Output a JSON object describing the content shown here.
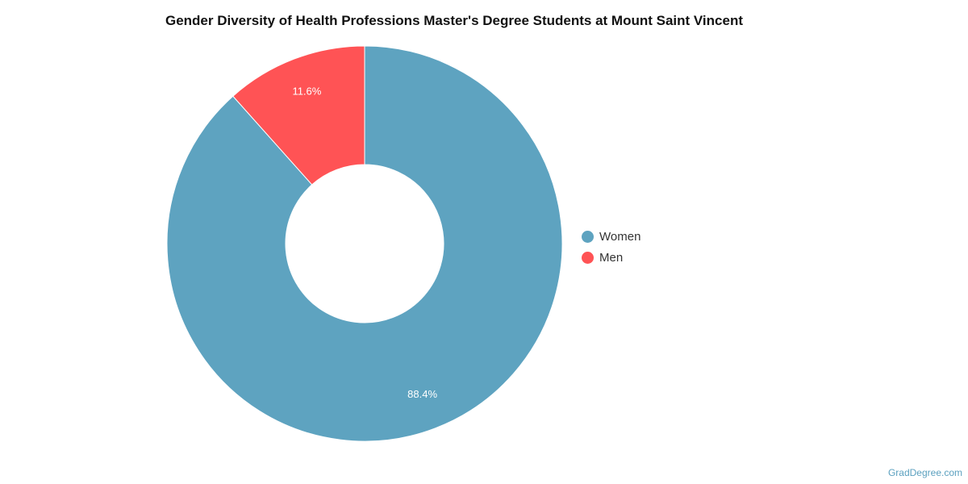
{
  "chart_data": {
    "type": "pie",
    "variant": "donut",
    "title": "Gender Diversity of Health Professions Master's Degree Students at Mount Saint Vincent",
    "slices": [
      {
        "label": "Women",
        "value": 88.4,
        "display": "88.4%",
        "color": "#5ea3c0"
      },
      {
        "label": "Men",
        "value": 11.6,
        "display": "11.6%",
        "color": "#ff5355"
      }
    ],
    "legend_position": "right"
  },
  "watermark": "GradDegree.com"
}
